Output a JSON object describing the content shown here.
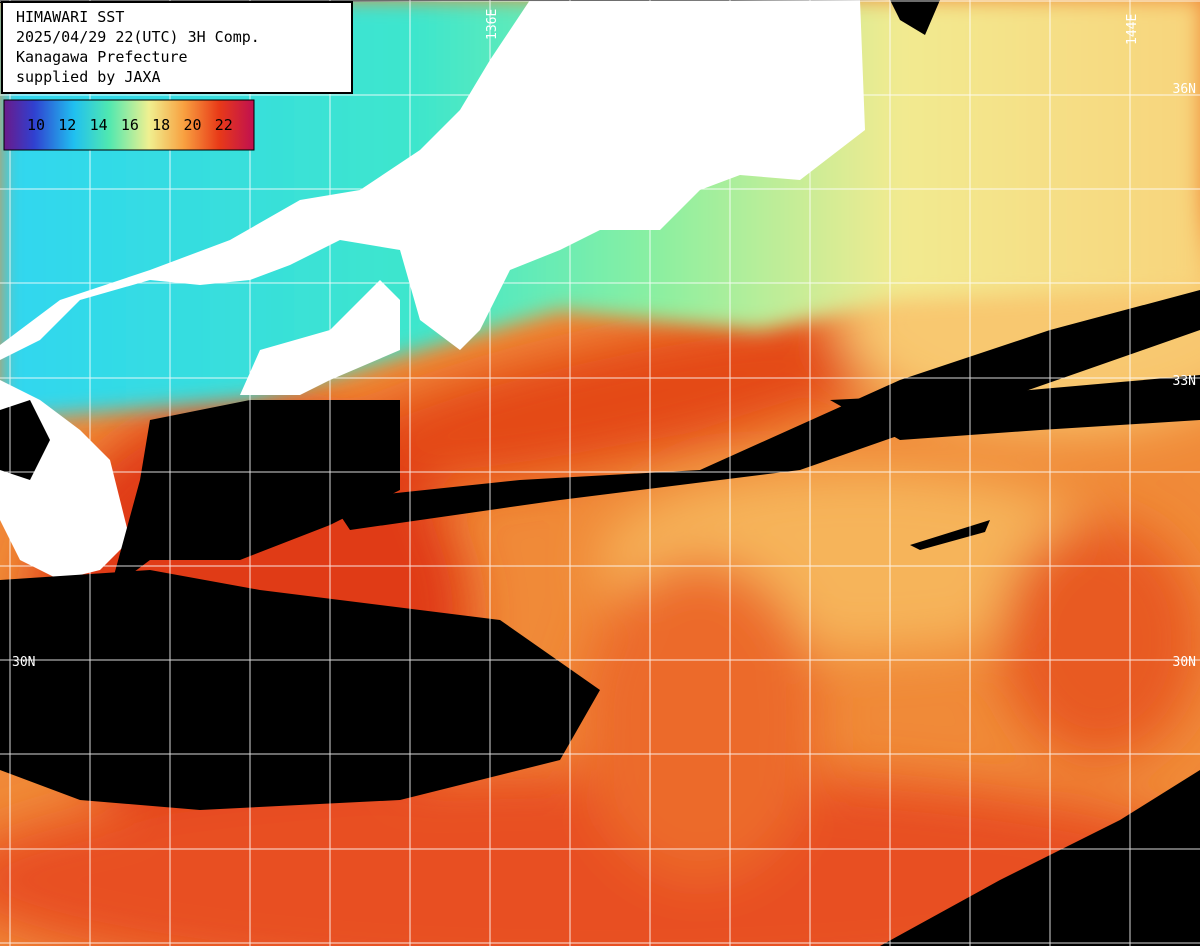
{
  "header": {
    "lines": [
      "HIMAWARI SST",
      "2025/04/29 22(UTC) 3H Comp.",
      "Kanagawa Prefecture",
      "supplied by JAXA"
    ]
  },
  "colorbar": {
    "ticks": [
      10,
      12,
      14,
      16,
      18,
      20,
      22
    ]
  },
  "grid": {
    "lon_labels": [
      "136E",
      "144E"
    ],
    "lat_labels_right": [
      "36N",
      "33N",
      "30N"
    ],
    "lat_labels_left": [
      "30N"
    ]
  }
}
